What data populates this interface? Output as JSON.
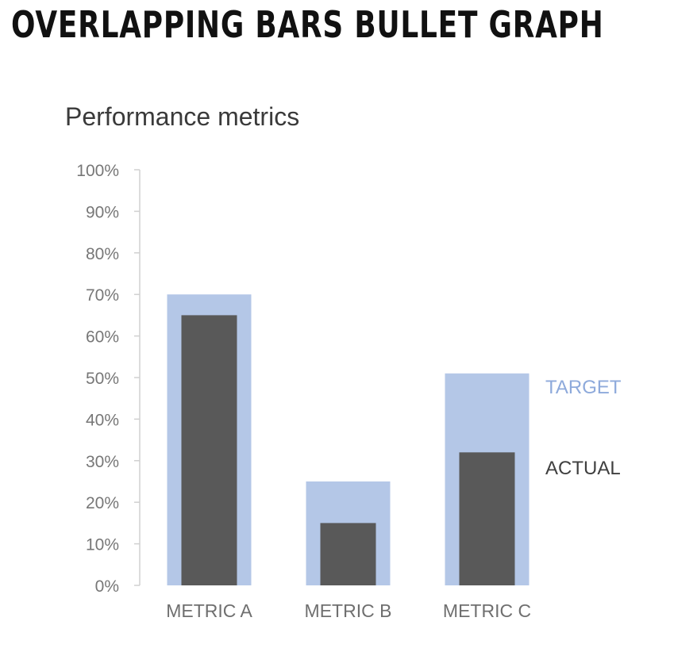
{
  "heading": "OVERLAPPING BARS BULLET GRAPH",
  "chart_data": {
    "type": "bar",
    "title": "Performance metrics",
    "categories": [
      "METRIC A",
      "METRIC B",
      "METRIC C"
    ],
    "series": [
      {
        "name": "TARGET",
        "values": [
          70,
          25,
          51
        ],
        "color": "#b4c7e7"
      },
      {
        "name": "ACTUAL",
        "values": [
          65,
          15,
          32
        ],
        "color": "#595959"
      }
    ],
    "ylim": [
      0,
      100
    ],
    "y_ticks": [
      0,
      10,
      20,
      30,
      40,
      50,
      60,
      70,
      80,
      90,
      100
    ],
    "y_tick_format": "%",
    "xlabel": "",
    "ylabel": "",
    "grid": false,
    "legend_position": "right, beside last bar"
  }
}
